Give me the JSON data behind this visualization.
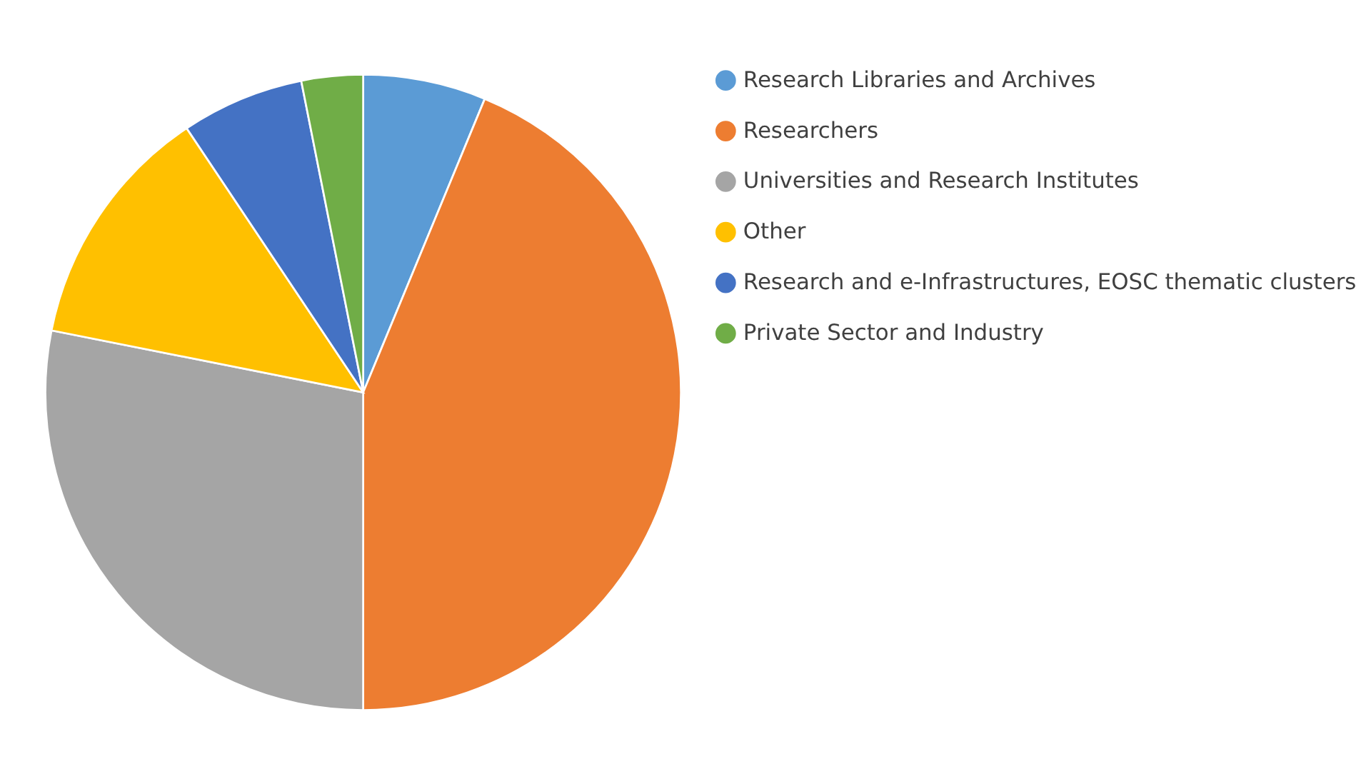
{
  "chart_data": {
    "type": "pie",
    "categories": [
      "Research Libraries and Archives",
      "Researchers",
      "Universities and Research Institutes",
      "Other",
      "Research and e-Infrastructures, EOSC thematic clusters",
      "Private Sector and Industry"
    ],
    "values": [
      6.25,
      43.75,
      28.125,
      12.5,
      6.25,
      3.125
    ],
    "colors": [
      "#5b9bd5",
      "#ed7d31",
      "#a5a5a5",
      "#ffc000",
      "#4472c4",
      "#70ad47"
    ],
    "legend": "right"
  }
}
